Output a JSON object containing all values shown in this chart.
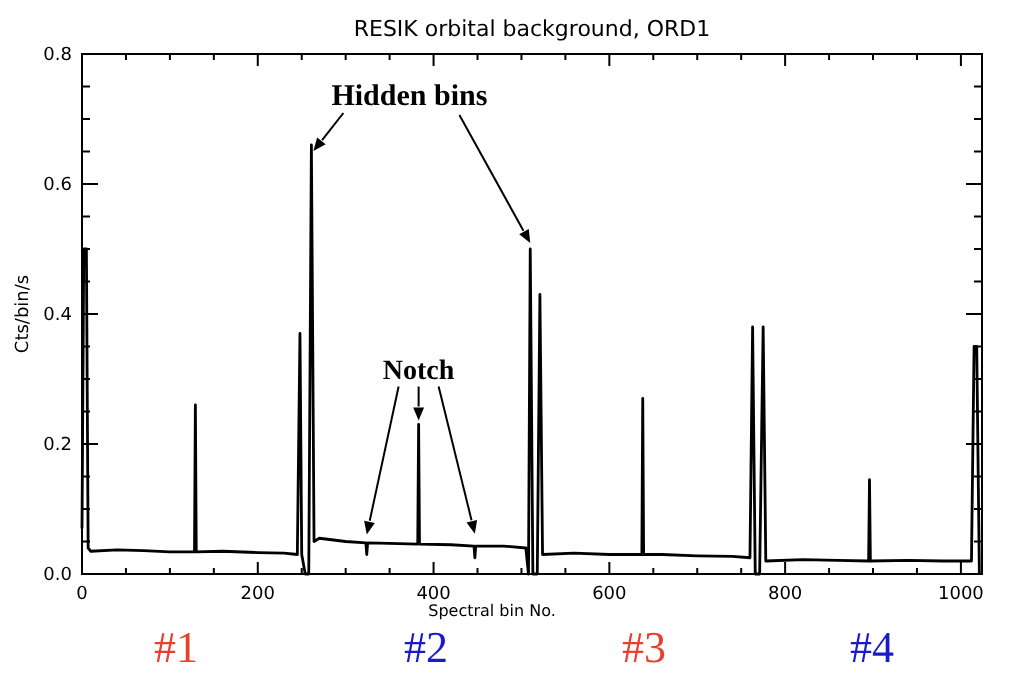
{
  "chart_data": {
    "type": "line",
    "title": "RESIK orbital background, ORD1",
    "xlabel": "Spectral bin No.",
    "ylabel": "Cts/bin/s",
    "x": [
      0,
      2,
      5,
      7,
      10,
      40,
      70,
      100,
      128,
      129,
      130,
      160,
      200,
      230,
      245,
      248,
      250,
      254,
      258,
      261,
      264,
      270,
      300,
      323,
      324,
      325,
      350,
      382,
      383,
      384,
      420,
      446,
      447,
      448,
      480,
      505,
      508,
      510,
      513,
      518,
      521,
      524,
      560,
      600,
      637,
      638,
      639,
      660,
      700,
      740,
      760,
      763,
      766,
      771,
      775,
      778,
      820,
      860,
      895,
      896,
      897,
      940,
      980,
      1012,
      1015,
      1018,
      1021
    ],
    "series": [
      {
        "color": "#000000",
        "values": [
          0.07,
          0.5,
          0.5,
          0.04,
          0.035,
          0.037,
          0.036,
          0.034,
          0.034,
          0.26,
          0.034,
          0.035,
          0.033,
          0.032,
          0.03,
          0.37,
          0.03,
          0.0,
          0.0,
          0.66,
          0.05,
          0.055,
          0.05,
          0.048,
          0.03,
          0.048,
          0.047,
          0.046,
          0.23,
          0.046,
          0.045,
          0.043,
          0.025,
          0.043,
          0.043,
          0.04,
          0.0,
          0.5,
          0.0,
          0.0,
          0.43,
          0.03,
          0.032,
          0.03,
          0.03,
          0.27,
          0.03,
          0.03,
          0.028,
          0.027,
          0.025,
          0.38,
          0.0,
          0.0,
          0.38,
          0.02,
          0.022,
          0.021,
          0.02,
          0.145,
          0.02,
          0.021,
          0.02,
          0.02,
          0.35,
          0.35,
          0.0
        ]
      }
    ],
    "xlim": [
      0,
      1024
    ],
    "ylim": [
      0,
      0.8
    ],
    "xticks": [
      0,
      {
        "value": 50,
        "label": null
      },
      {
        "value": 100,
        "label": null
      },
      {
        "value": 150,
        "label": null
      },
      200,
      {
        "value": 250,
        "label": null
      },
      {
        "value": 300,
        "label": null
      },
      {
        "value": 350,
        "label": null
      },
      400,
      {
        "value": 450,
        "label": null
      },
      {
        "value": 500,
        "label": null
      },
      {
        "value": 550,
        "label": null
      },
      600,
      {
        "value": 650,
        "label": null
      },
      {
        "value": 700,
        "label": null
      },
      {
        "value": 750,
        "label": null
      },
      800,
      {
        "value": 850,
        "label": null
      },
      {
        "value": 900,
        "label": null
      },
      {
        "value": 950,
        "label": null
      },
      1000
    ],
    "yticks": [
      {
        "value": 0,
        "label": "0.0"
      },
      {
        "value": 0.05,
        "label": null
      },
      {
        "value": 0.1,
        "label": null
      },
      {
        "value": 0.15,
        "label": null
      },
      {
        "value": 0.2,
        "label": "0.2"
      },
      {
        "value": 0.25,
        "label": null
      },
      {
        "value": 0.3,
        "label": null
      },
      {
        "value": 0.35,
        "label": null
      },
      {
        "value": 0.4,
        "label": "0.4"
      },
      {
        "value": 0.45,
        "label": null
      },
      {
        "value": 0.5,
        "label": null
      },
      {
        "value": 0.55,
        "label": null
      },
      {
        "value": 0.6,
        "label": "0.6"
      },
      {
        "value": 0.65,
        "label": null
      },
      {
        "value": 0.7,
        "label": null
      },
      {
        "value": 0.75,
        "label": null
      },
      {
        "value": 0.8,
        "label": "0.8"
      }
    ],
    "annotations": [
      {
        "text": "Hidden bins",
        "x": 261,
        "y": 0.66
      },
      {
        "text": "Notch",
        "x": 383,
        "y": 0.23
      },
      "#1",
      "#2",
      "#3",
      "#4"
    ],
    "grid": false,
    "marker": "none",
    "line_style": "solid"
  }
}
